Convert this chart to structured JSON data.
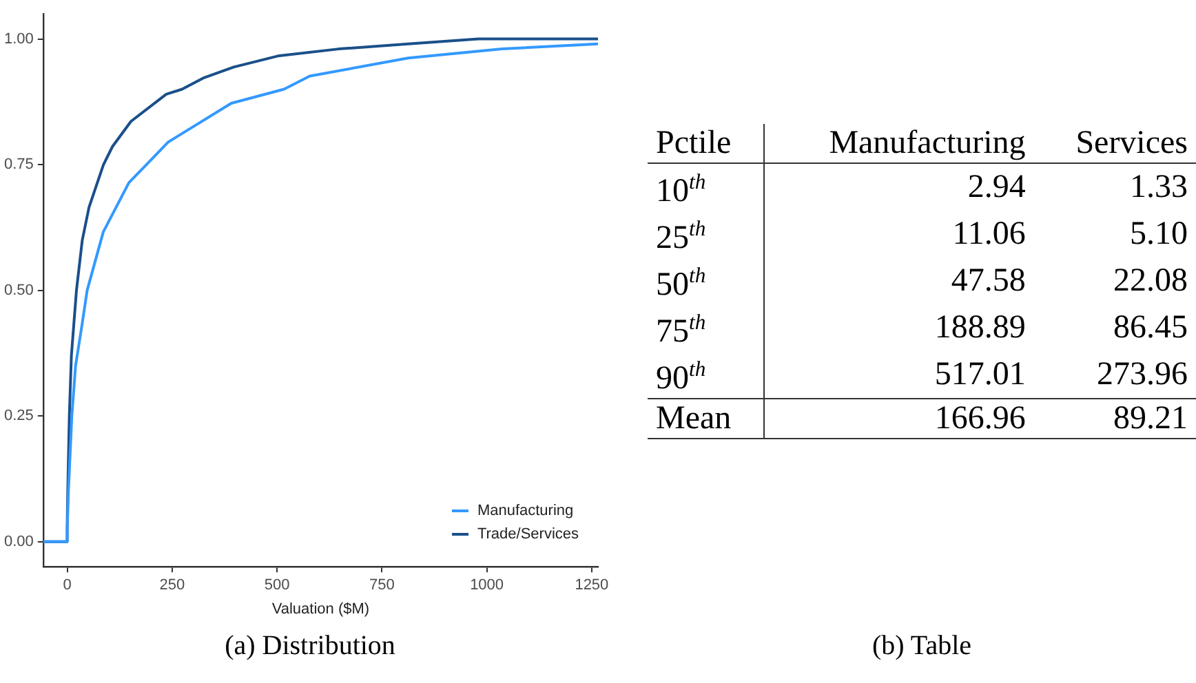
{
  "chart_data": [
    {
      "type": "line",
      "title": "(a) Distribution",
      "xlabel": "Valuation ($M)",
      "xlim": [
        -57,
        1265
      ],
      "xticks": [
        0,
        250,
        500,
        750,
        1000,
        1250
      ],
      "ylim": [
        -0.05,
        1.05
      ],
      "yticks": [
        {
          "value": 0,
          "label": "0.00"
        },
        {
          "value": 0.25,
          "label": "0.25"
        },
        {
          "value": 0.5,
          "label": "0.50"
        },
        {
          "value": 0.75,
          "label": "0.75"
        },
        {
          "value": 1,
          "label": "1.00"
        }
      ],
      "grid": false,
      "legend": "bottom right",
      "marker": "none",
      "line_style": "solid",
      "series": [
        {
          "name": "Manufacturing",
          "color": "#3399ff",
          "x": [
            -57,
            0,
            0,
            2.94,
            11.06,
            20,
            36,
            47.58,
            86,
            147,
            188.89,
            241,
            391,
            517.01,
            578,
            813,
            1036,
            1265
          ],
          "values": [
            0,
            0,
            0.02,
            0.1,
            0.25,
            0.35,
            0.435,
            0.5,
            0.616,
            0.714,
            0.75,
            0.795,
            0.872,
            0.9,
            0.926,
            0.962,
            0.98,
            0.99
          ]
        },
        {
          "name": "Trade/Services",
          "color": "#1a4f8a",
          "x": [
            -57,
            0,
            0,
            1.33,
            5.1,
            10,
            22.08,
            36,
            52,
            86.45,
            108,
            152,
            236,
            273.96,
            324,
            397,
            502,
            647,
            813,
            980,
            1265
          ],
          "values": [
            0,
            0,
            0.03,
            0.1,
            0.25,
            0.37,
            0.5,
            0.6,
            0.665,
            0.75,
            0.786,
            0.836,
            0.89,
            0.9,
            0.922,
            0.944,
            0.966,
            0.98,
            0.99,
            1,
            1
          ]
        }
      ]
    },
    {
      "type": "other",
      "title": "(b) Table",
      "xlabel": "Pctile",
      "categories": [
        "10$^{th}$",
        "25$^{th}$",
        "50$^{th}$",
        "75$^{th}$",
        "90$^{th}$",
        "Mean"
      ],
      "series": [
        {
          "name": "Manufacturing",
          "color": "#000000",
          "values": [
            2.94,
            11.06,
            47.58,
            188.89,
            517.01,
            166.96
          ],
          "value_labels": [
            "2.94",
            "11.06",
            "47.58",
            "188.89",
            "517.01",
            "166.96"
          ]
        },
        {
          "name": "Services",
          "color": "#000000",
          "values": [
            1.33,
            5.1,
            22.08,
            86.45,
            273.96,
            89.21
          ],
          "value_labels": [
            "1.33",
            "5.10",
            "22.08",
            "86.45",
            "273.96",
            "89.21"
          ]
        }
      ]
    }
  ]
}
